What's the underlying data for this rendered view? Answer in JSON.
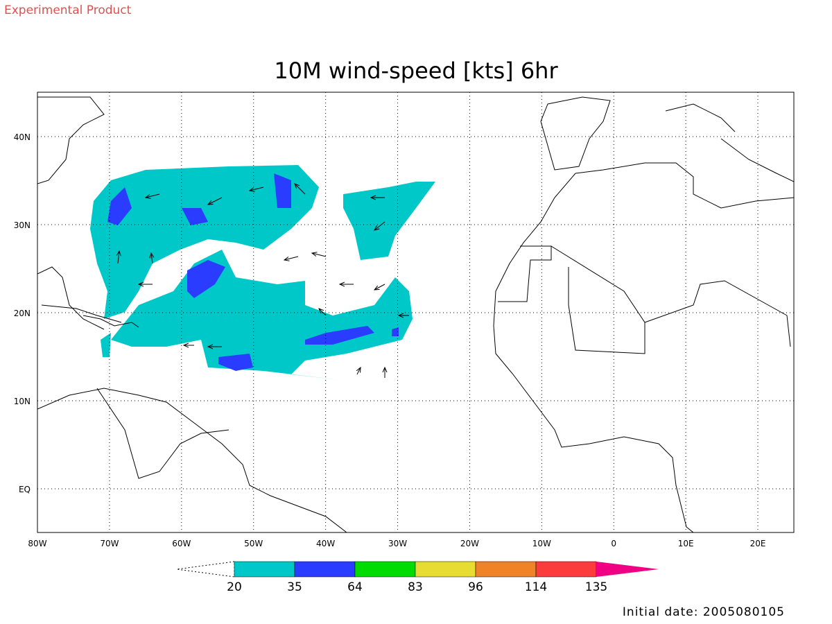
{
  "header": {
    "note": "Experimental Product"
  },
  "title": "10M wind-speed [kts] 6hr",
  "map": {
    "x_ticks": [
      "80W",
      "70W",
      "60W",
      "50W",
      "40W",
      "30W",
      "20W",
      "10W",
      "0",
      "10E",
      "20E"
    ],
    "y_ticks": [
      "40N",
      "30N",
      "20N",
      "10N",
      "EQ"
    ]
  },
  "colorbar": {
    "levels": [
      20,
      35,
      64,
      83,
      96,
      114,
      135
    ],
    "colors": [
      "#00c8c8",
      "#2a3cff",
      "#00dc00",
      "#e6dc32",
      "#f08228",
      "#fa3c3c",
      "#f00082"
    ]
  },
  "footer": "Initial date: 2005080105"
}
